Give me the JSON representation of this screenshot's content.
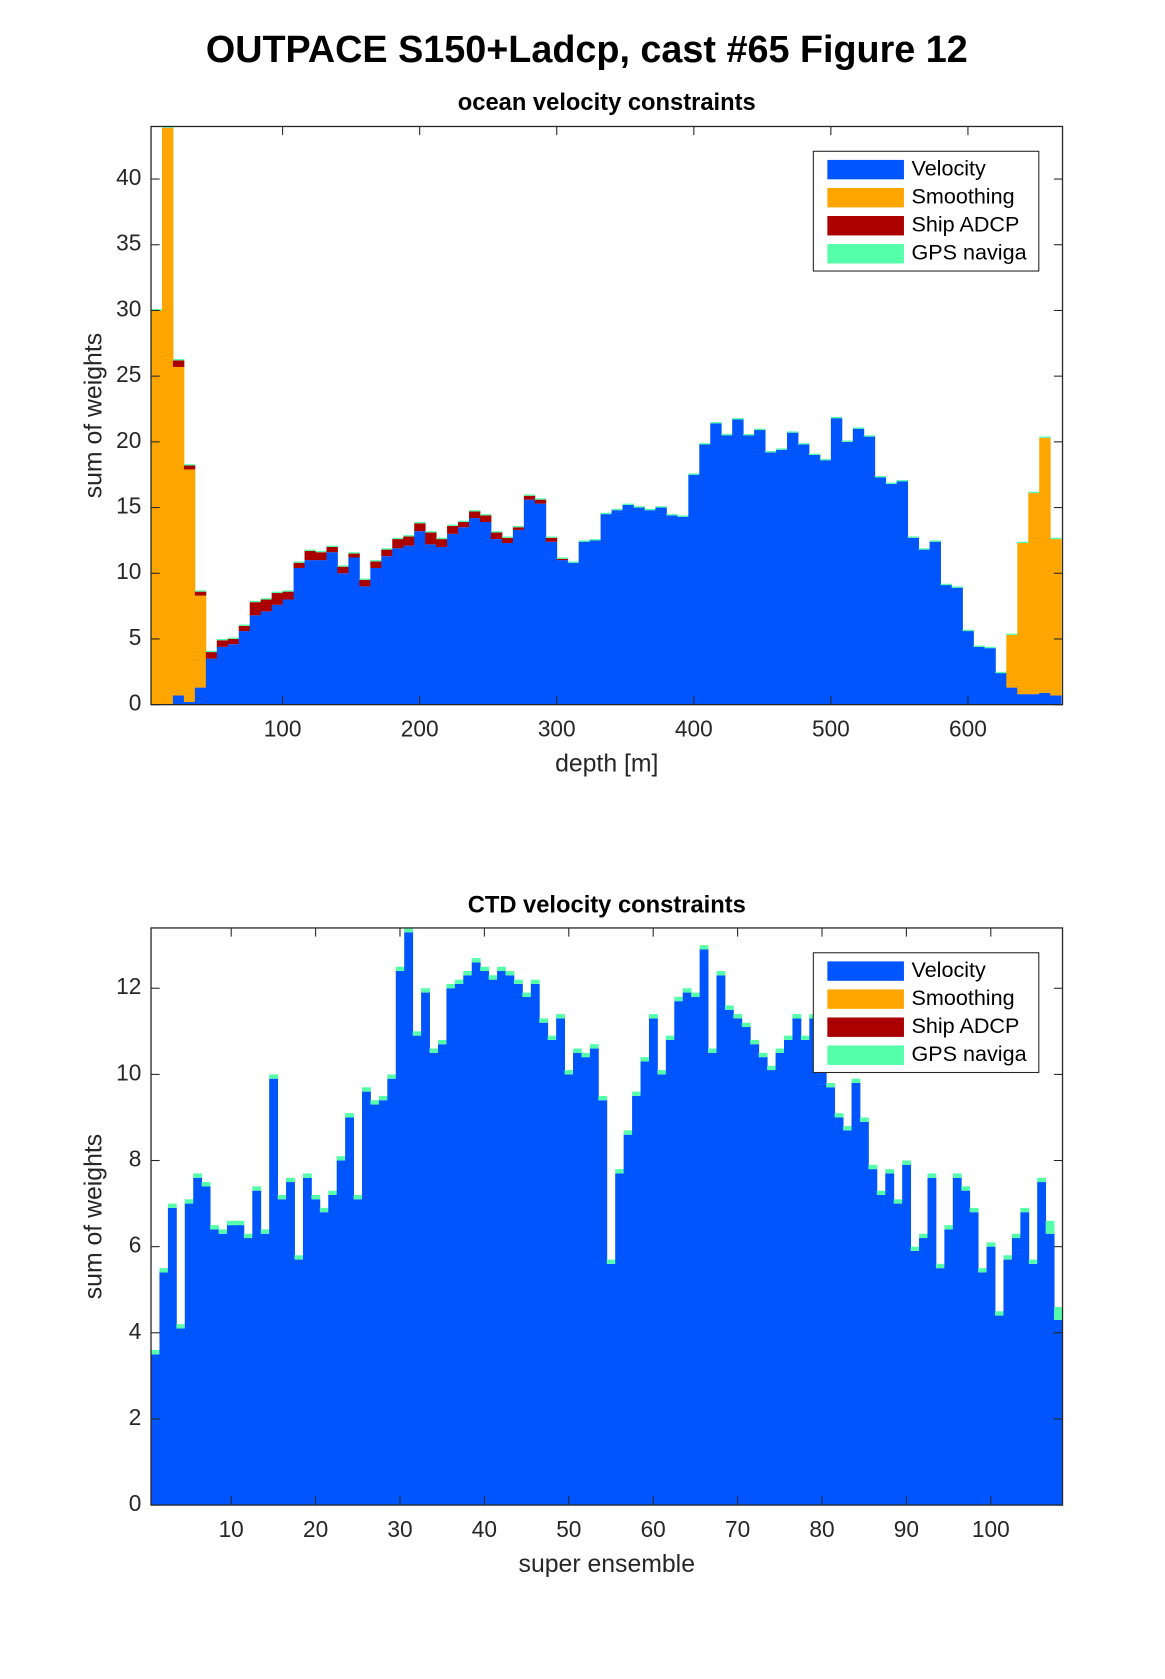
{
  "figure_title": "OUTPACE S150+Ladcp, cast #65  Figure 12",
  "chart_data": [
    {
      "type": "stacked_bar",
      "title": "ocean velocity constraints",
      "xlabel": "depth [m]",
      "ylabel": "sum of weights",
      "x": [
        8,
        16,
        24,
        32,
        40,
        48,
        56,
        64,
        72,
        80,
        88,
        96,
        104,
        112,
        120,
        128,
        136,
        144,
        152,
        160,
        168,
        176,
        184,
        192,
        200,
        208,
        216,
        224,
        232,
        240,
        248,
        256,
        264,
        272,
        280,
        288,
        296,
        304,
        312,
        320,
        328,
        336,
        344,
        352,
        360,
        368,
        376,
        384,
        392,
        400,
        408,
        416,
        424,
        432,
        440,
        448,
        456,
        464,
        472,
        480,
        488,
        496,
        504,
        512,
        520,
        528,
        536,
        544,
        552,
        560,
        568,
        576,
        584,
        592,
        600,
        608,
        616,
        624,
        632,
        640,
        648,
        656,
        664
      ],
      "series": [
        {
          "name": "Velocity",
          "color": "#0055ff",
          "values": [
            0,
            0,
            0.7,
            0.2,
            1.3,
            3.5,
            4.4,
            4.6,
            5.6,
            6.8,
            7.1,
            7.6,
            8,
            10.4,
            11,
            11,
            11.6,
            10,
            11.2,
            9,
            10.4,
            11.3,
            11.9,
            12.1,
            13.2,
            12.2,
            12,
            13,
            13.5,
            14.2,
            13.9,
            12.6,
            12.3,
            13.3,
            15.6,
            15.3,
            12.4,
            11,
            10.8,
            12.4,
            12.5,
            14.5,
            14.8,
            15.2,
            15,
            14.8,
            15,
            14.4,
            14.3,
            17.5,
            19.8,
            21.4,
            20.5,
            21.7,
            20.5,
            20.9,
            19.2,
            19.4,
            20.7,
            19.8,
            19,
            18.6,
            21.8,
            20,
            21,
            20.4,
            17.3,
            16.8,
            17,
            12.7,
            11.8,
            12.4,
            9.1,
            8.9,
            5.6,
            4.4,
            4.3,
            2.4,
            1.3,
            0.8,
            0.8,
            0.9,
            0.7
          ]
        },
        {
          "name": "Smoothing",
          "color": "#ffa500",
          "values": [
            30,
            43.9,
            25,
            17.7,
            7,
            0,
            0,
            0,
            0,
            0,
            0,
            0,
            0,
            0,
            0,
            0,
            0,
            0,
            0,
            0,
            0,
            0,
            0,
            0,
            0,
            0,
            0,
            0,
            0,
            0,
            0,
            0,
            0,
            0,
            0,
            0,
            0,
            0,
            0,
            0,
            0,
            0,
            0,
            0,
            0,
            0,
            0,
            0,
            0,
            0,
            0,
            0,
            0,
            0,
            0,
            0,
            0,
            0,
            0,
            0,
            0,
            0,
            0,
            0,
            0,
            0,
            0,
            0,
            0,
            0,
            0,
            0,
            0,
            0,
            0,
            0,
            0,
            0,
            4,
            11.5,
            15.3,
            19.4,
            11.9
          ]
        },
        {
          "name": "Ship ADCP",
          "color": "#aa0000",
          "values": [
            0,
            0,
            0.5,
            0.3,
            0.3,
            0.5,
            0.5,
            0.4,
            0.4,
            1,
            0.9,
            0.9,
            0.6,
            0.4,
            0.7,
            0.6,
            0.4,
            0.5,
            0.3,
            0.5,
            0.5,
            0.5,
            0.7,
            0.7,
            0.6,
            0.9,
            0.6,
            0.6,
            0.4,
            0.5,
            0.5,
            0.5,
            0.4,
            0.2,
            0.3,
            0.3,
            0.3,
            0.1,
            0,
            0,
            0,
            0,
            0,
            0,
            0,
            0,
            0,
            0,
            0,
            0,
            0,
            0,
            0,
            0,
            0,
            0,
            0,
            0,
            0,
            0,
            0,
            0,
            0,
            0,
            0,
            0,
            0,
            0,
            0,
            0,
            0,
            0,
            0,
            0,
            0,
            0,
            0,
            0,
            0,
            0,
            0,
            0,
            0
          ]
        },
        {
          "name": "GPS naviga",
          "color": "#55ffaa",
          "values": [
            0.1,
            0.1,
            0.1,
            0.1,
            0.1,
            0.1,
            0.1,
            0.1,
            0.1,
            0.1,
            0.1,
            0.1,
            0.1,
            0.1,
            0.1,
            0.1,
            0.1,
            0.1,
            0.1,
            0.1,
            0.1,
            0.1,
            0.1,
            0.1,
            0.1,
            0.1,
            0.1,
            0.1,
            0.1,
            0.1,
            0.1,
            0.1,
            0.1,
            0.1,
            0.1,
            0.1,
            0.1,
            0.1,
            0.1,
            0.1,
            0.1,
            0.1,
            0.1,
            0.1,
            0.1,
            0.1,
            0.1,
            0.1,
            0.1,
            0.1,
            0.1,
            0.1,
            0.1,
            0.1,
            0.1,
            0.1,
            0.1,
            0.1,
            0.1,
            0.1,
            0.1,
            0.1,
            0.1,
            0.1,
            0.1,
            0.1,
            0.1,
            0.1,
            0.1,
            0.1,
            0.1,
            0.1,
            0.1,
            0.1,
            0.1,
            0.1,
            0.1,
            0.1,
            0.1,
            0.1,
            0.1,
            0.1,
            0.1
          ]
        }
      ],
      "xlim": [
        4,
        669
      ],
      "xticks": [
        100,
        200,
        300,
        400,
        500,
        600
      ],
      "ylim": [
        0,
        44
      ],
      "yticks": [
        0,
        5,
        10,
        15,
        20,
        25,
        30,
        35,
        40
      ],
      "legend": "upper right"
    },
    {
      "type": "stacked_bar",
      "title": "CTD velocity constraints",
      "xlabel": "super ensemble",
      "ylabel": "sum of weights",
      "x": [
        1,
        2,
        3,
        4,
        5,
        6,
        7,
        8,
        9,
        10,
        11,
        12,
        13,
        14,
        15,
        16,
        17,
        18,
        19,
        20,
        21,
        22,
        23,
        24,
        25,
        26,
        27,
        28,
        29,
        30,
        31,
        32,
        33,
        34,
        35,
        36,
        37,
        38,
        39,
        40,
        41,
        42,
        43,
        44,
        45,
        46,
        47,
        48,
        49,
        50,
        51,
        52,
        53,
        54,
        55,
        56,
        57,
        58,
        59,
        60,
        61,
        62,
        63,
        64,
        65,
        66,
        67,
        68,
        69,
        70,
        71,
        72,
        73,
        74,
        75,
        76,
        77,
        78,
        79,
        80,
        81,
        82,
        83,
        84,
        85,
        86,
        87,
        88,
        89,
        90,
        91,
        92,
        93,
        94,
        95,
        96,
        97,
        98,
        99,
        100,
        101,
        102,
        103,
        104,
        105,
        106,
        107,
        108
      ],
      "series": [
        {
          "name": "Velocity",
          "color": "#0055ff",
          "values": [
            3.5,
            5.4,
            6.9,
            4.1,
            7,
            7.6,
            7.4,
            6.4,
            6.3,
            6.5,
            6.5,
            6.2,
            7.3,
            6.3,
            9.9,
            7.1,
            7.5,
            5.7,
            7.6,
            7.1,
            6.8,
            7.2,
            8,
            9,
            7.1,
            9.6,
            9.3,
            9.4,
            9.9,
            12.4,
            13.3,
            10.9,
            11.9,
            10.5,
            10.7,
            12,
            12.1,
            12.3,
            12.6,
            12.4,
            12.2,
            12.4,
            12.3,
            12.1,
            11.8,
            12.1,
            11.2,
            10.8,
            11.3,
            10,
            10.5,
            10.4,
            10.6,
            9.4,
            5.6,
            7.7,
            8.6,
            9.5,
            10.3,
            11.3,
            10,
            10.8,
            11.7,
            11.9,
            11.8,
            12.9,
            10.5,
            12.3,
            11.5,
            11.3,
            11.1,
            10.7,
            10.4,
            10.1,
            10.5,
            10.8,
            11.3,
            10.8,
            11.3,
            10.8,
            9.7,
            9,
            8.7,
            9.8,
            8.9,
            7.8,
            7.2,
            7.7,
            7,
            7.9,
            5.9,
            6.2,
            7.6,
            5.5,
            6.4,
            7.6,
            7.3,
            6.8,
            5.4,
            6,
            4.4,
            5.7,
            6.2,
            6.8,
            5.6,
            7.5,
            6.3,
            4.3
          ]
        },
        {
          "name": "Smoothing",
          "color": "#ffa500",
          "values": [
            0,
            0,
            0,
            0,
            0,
            0,
            0,
            0,
            0,
            0,
            0,
            0,
            0,
            0,
            0,
            0,
            0,
            0,
            0,
            0,
            0,
            0,
            0,
            0,
            0,
            0,
            0,
            0,
            0,
            0,
            0,
            0,
            0,
            0,
            0,
            0,
            0,
            0,
            0,
            0,
            0,
            0,
            0,
            0,
            0,
            0,
            0,
            0,
            0,
            0,
            0,
            0,
            0,
            0,
            0,
            0,
            0,
            0,
            0,
            0,
            0,
            0,
            0,
            0,
            0,
            0,
            0,
            0,
            0,
            0,
            0,
            0,
            0,
            0,
            0,
            0,
            0,
            0,
            0,
            0,
            0,
            0,
            0,
            0,
            0,
            0,
            0,
            0,
            0,
            0,
            0,
            0,
            0,
            0,
            0,
            0,
            0,
            0,
            0,
            0,
            0,
            0,
            0,
            0,
            0,
            0,
            0,
            0
          ]
        },
        {
          "name": "Ship ADCP",
          "color": "#aa0000",
          "values": [
            0,
            0,
            0,
            0,
            0,
            0,
            0,
            0,
            0,
            0,
            0,
            0,
            0,
            0,
            0,
            0,
            0,
            0,
            0,
            0,
            0,
            0,
            0,
            0,
            0,
            0,
            0,
            0,
            0,
            0,
            0,
            0,
            0,
            0,
            0,
            0,
            0,
            0,
            0,
            0,
            0,
            0,
            0,
            0,
            0,
            0,
            0,
            0,
            0,
            0,
            0,
            0,
            0,
            0,
            0,
            0,
            0,
            0,
            0,
            0,
            0,
            0,
            0,
            0,
            0,
            0,
            0,
            0,
            0,
            0,
            0,
            0,
            0,
            0,
            0,
            0,
            0,
            0,
            0,
            0,
            0,
            0,
            0,
            0,
            0,
            0,
            0,
            0,
            0,
            0,
            0,
            0,
            0,
            0,
            0,
            0,
            0,
            0,
            0,
            0,
            0,
            0,
            0,
            0,
            0,
            0,
            0,
            0
          ]
        },
        {
          "name": "GPS naviga",
          "color": "#55ffaa",
          "values": [
            0.1,
            0.1,
            0.1,
            0.1,
            0.1,
            0.1,
            0.1,
            0.1,
            0.1,
            0.1,
            0.1,
            0.1,
            0.1,
            0.1,
            0.1,
            0.1,
            0.1,
            0.1,
            0.1,
            0.1,
            0.1,
            0.1,
            0.1,
            0.1,
            0.1,
            0.1,
            0.1,
            0.1,
            0.1,
            0.1,
            0.1,
            0.1,
            0.1,
            0.1,
            0.1,
            0.1,
            0.1,
            0.1,
            0.1,
            0.1,
            0.1,
            0.1,
            0.1,
            0.1,
            0.1,
            0.1,
            0.1,
            0.1,
            0.1,
            0.1,
            0.1,
            0.1,
            0.1,
            0.1,
            0.1,
            0.1,
            0.1,
            0.1,
            0.1,
            0.1,
            0.1,
            0.1,
            0.1,
            0.1,
            0.1,
            0.1,
            0.1,
            0.1,
            0.1,
            0.1,
            0.1,
            0.1,
            0.1,
            0.1,
            0.1,
            0.1,
            0.1,
            0.1,
            0.1,
            0.1,
            0.1,
            0.1,
            0.1,
            0.1,
            0.1,
            0.1,
            0.1,
            0.1,
            0.1,
            0.1,
            0.1,
            0.1,
            0.1,
            0.1,
            0.1,
            0.1,
            0.1,
            0.1,
            0.1,
            0.1,
            0.1,
            0.1,
            0.1,
            0.1,
            0.1,
            0.1,
            0.3,
            0.3
          ]
        }
      ],
      "xlim": [
        0.5,
        108.5
      ],
      "xticks": [
        10,
        20,
        30,
        40,
        50,
        60,
        70,
        80,
        90,
        100
      ],
      "ylim": [
        0,
        13.4
      ],
      "yticks": [
        0,
        2,
        4,
        6,
        8,
        10,
        12
      ],
      "legend": "upper right"
    }
  ]
}
